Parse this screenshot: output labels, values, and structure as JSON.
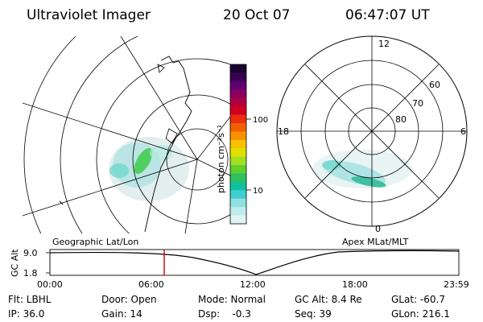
{
  "header": {
    "instrument": "Ultraviolet Imager",
    "date": "20 Oct 07",
    "time": "06:47:07 UT"
  },
  "colorbar": {
    "unit_label": "photon cm⁻²s⁻¹",
    "tick_labels": [
      "100",
      "10"
    ],
    "colors": [
      "#1a0030",
      "#3a0050",
      "#600070",
      "#8a0060",
      "#b00040",
      "#d00020",
      "#e83010",
      "#f06000",
      "#f89000",
      "#f8c000",
      "#e0e000",
      "#a0e020",
      "#60d030",
      "#30c060",
      "#10c0a0",
      "#40d0d0",
      "#90e0e0",
      "#c0ecec",
      "#e0f4f4"
    ]
  },
  "left_panel": {
    "label": "Geographic Lat/Lon"
  },
  "right_panel": {
    "label": "Apex MLat/MLT",
    "mlt_labels": {
      "top": "12",
      "left": "18",
      "right": "6",
      "bottom": "0"
    },
    "lat_labels": [
      "60",
      "70",
      "80"
    ]
  },
  "altitude_plot": {
    "axis_label": "GC Alt",
    "y_ticks": [
      "9.0",
      "1.8"
    ],
    "x_ticks": [
      "00:00",
      "06:00",
      "12:00",
      "18:00",
      "23:59"
    ],
    "marker_color": "#d00000"
  },
  "info": {
    "filter": "Flt: LBHL",
    "door": "Door: Open",
    "mode": "Mode: Normal",
    "gc_alt": "GC Alt: 8.4 Re",
    "glat": "GLat: -60.7",
    "ip": "IP: 36.0",
    "gain": "Gain: 14",
    "dsp": "Dsp:    -0.3",
    "seq": "Seq: 39",
    "glon": "GLon: 216.1"
  }
}
